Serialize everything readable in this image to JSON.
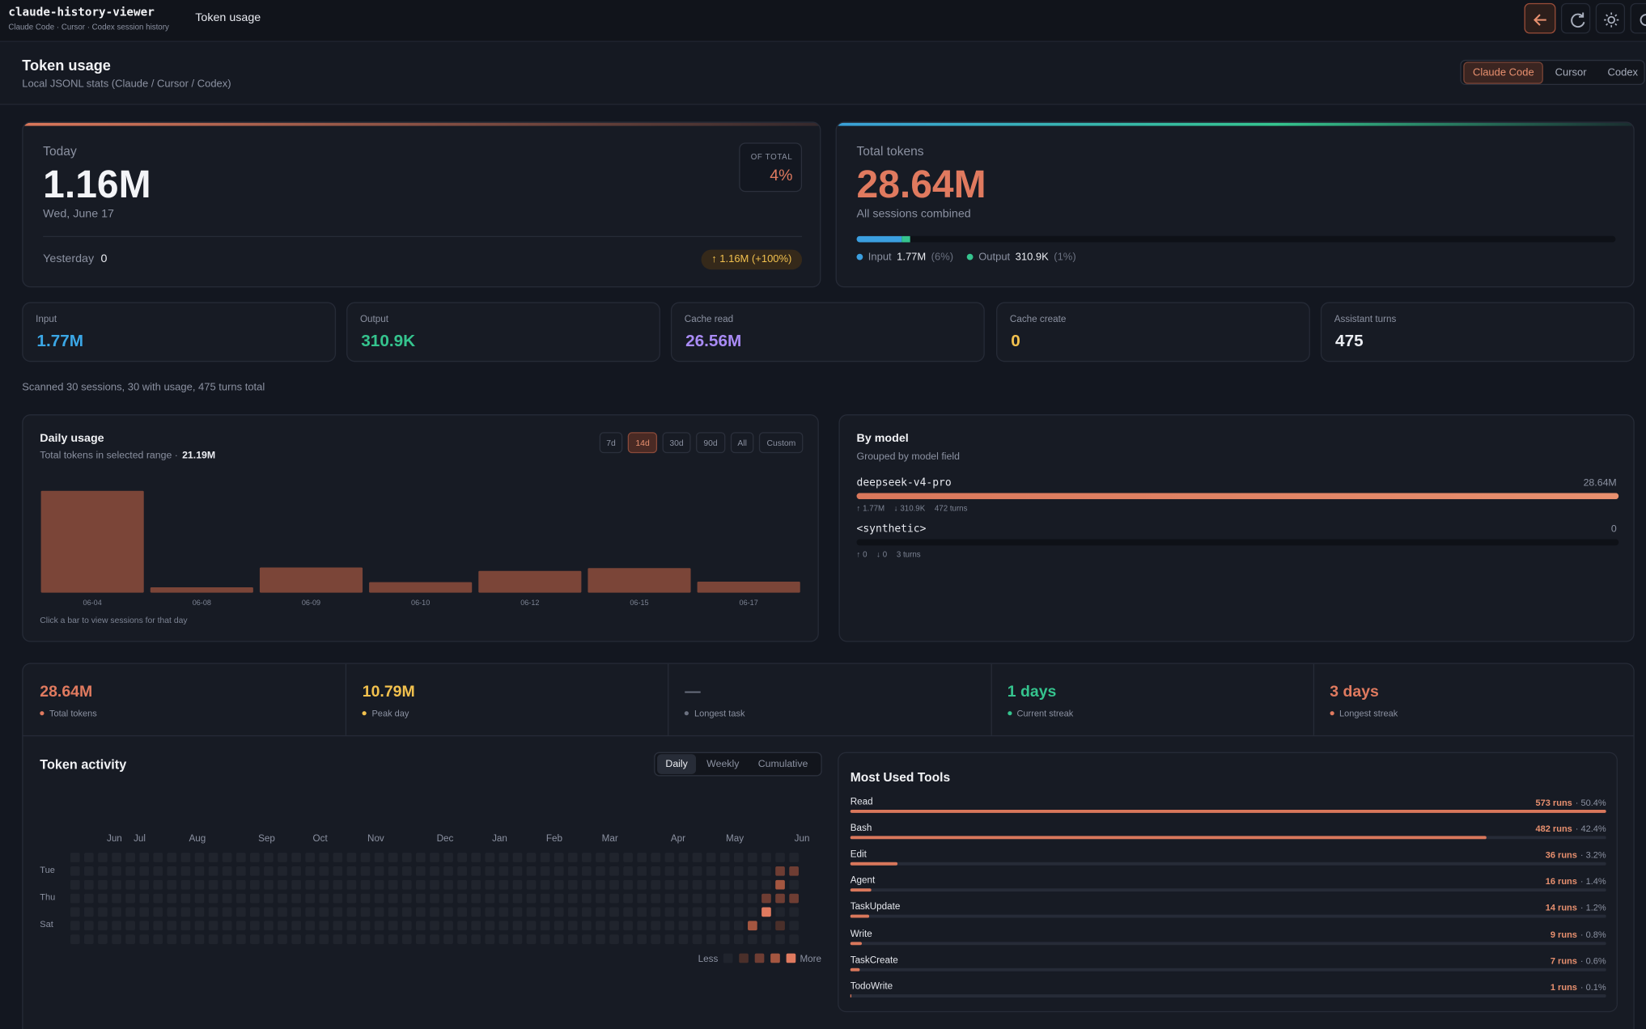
{
  "top_bar": {
    "app_name": "claude-history-viewer",
    "app_subtitle": "Claude Code · Cursor · Codex session history",
    "page_title": "Token usage"
  },
  "page_header": {
    "title": "Token usage",
    "subtitle": "Local JSONL stats (Claude / Cursor / Codex)",
    "sources": [
      "Claude Code",
      "Cursor",
      "Codex"
    ],
    "active_source": 0
  },
  "today": {
    "label": "Today",
    "value": "1.16M",
    "date": "Wed, June 17",
    "yesterday_label": "Yesterday",
    "yesterday_value": "0",
    "change": "↑ 1.16M (+100%)",
    "share_label": "OF TOTAL",
    "share": "4%"
  },
  "total": {
    "label": "Total tokens",
    "value": "28.64M",
    "caption": "All sessions combined",
    "parts": [
      {
        "name": "Input",
        "value": "1.77M",
        "share": 6,
        "share_label": "(6%)",
        "color": "#3b9fe0"
      },
      {
        "name": "Output",
        "value": "310.9K",
        "share": 1,
        "share_label": "(1%)",
        "color": "#35c48e"
      }
    ]
  },
  "stats": [
    {
      "label": "Input",
      "value": "1.77M",
      "color": "#3ba7e6"
    },
    {
      "label": "Output",
      "value": "310.9K",
      "color": "#35c48e"
    },
    {
      "label": "Cache read",
      "value": "26.56M",
      "color": "#a98bf5"
    },
    {
      "label": "Cache create",
      "value": "0",
      "color": "#f2c14e"
    },
    {
      "label": "Assistant turns",
      "value": "475",
      "color": "#eceef3"
    }
  ],
  "scan_note": "Scanned 30 sessions, 30 with usage, 475 turns total",
  "daily_usage": {
    "type": "bar",
    "title": "Daily usage",
    "subtitle": "Total tokens in selected range ·",
    "range_total": "21.19M",
    "ranges": [
      "7d",
      "14d",
      "30d",
      "90d",
      "All",
      "Custom"
    ],
    "active_range": 1,
    "categories": [
      "06-04",
      "06-08",
      "06-09",
      "06-10",
      "06-12",
      "06-15",
      "06-17"
    ],
    "values": [
      10.79,
      0.56,
      2.67,
      1.11,
      2.3,
      2.6,
      1.16
    ],
    "color": "#7b4538",
    "note": "Click a bar to view sessions for that day"
  },
  "by_model": {
    "title": "By model",
    "subtitle": "Grouped by model field",
    "models": [
      {
        "name": "deepseek-v4-pro",
        "tokens": 28.64,
        "tokens_label": "28.64M",
        "input": "↑ 1.77M",
        "output": "↓ 310.9K",
        "turns": "472 turns"
      },
      {
        "name": "<synthetic>",
        "tokens": 0,
        "tokens_label": "0",
        "input": "↑ 0",
        "output": "↓ 0",
        "turns": "3 turns"
      }
    ]
  },
  "summary": [
    {
      "value": "28.64M",
      "label": "Total tokens",
      "color": "#e07a5f"
    },
    {
      "value": "10.79M",
      "label": "Peak day",
      "color": "#f2c14e"
    },
    {
      "value": "—",
      "label": "Longest task",
      "color": "#6b7180"
    },
    {
      "value": "1 days",
      "label": "Current streak",
      "color": "#35c48e"
    },
    {
      "value": "3 days",
      "label": "Longest streak",
      "color": "#e07a5f"
    }
  ],
  "activity": {
    "title": "Token activity",
    "modes": [
      "Daily",
      "Weekly",
      "Cumulative"
    ],
    "active_mode": 0,
    "months": [
      "Jun",
      "Jul",
      "Aug",
      "Sep",
      "Oct",
      "Nov",
      "Dec",
      "Jan",
      "Feb",
      "Mar",
      "Apr",
      "May",
      "Jun"
    ],
    "day_labels": [
      "Tue",
      "Thu",
      "Sat"
    ],
    "recent_weeks": [
      [
        0,
        0,
        0,
        0,
        0,
        3,
        0
      ],
      [
        0,
        0,
        0,
        2,
        4,
        0,
        0
      ],
      [
        0,
        2,
        3,
        2,
        0,
        1,
        0
      ],
      [
        0,
        2,
        0,
        2,
        0,
        0,
        0
      ]
    ],
    "legend_less": "Less",
    "legend_more": "More",
    "colors": [
      "#20242d",
      "#4a2f2a",
      "#6e3d33",
      "#a45640",
      "#e07a5f"
    ]
  },
  "tools": {
    "title": "Most Used Tools",
    "categories": [
      "Read",
      "Bash",
      "Edit",
      "Agent",
      "TaskUpdate",
      "Write",
      "TaskCreate",
      "TodoWrite"
    ],
    "values": [
      573,
      482,
      36,
      16,
      14,
      9,
      7,
      1
    ],
    "value_labels": [
      "573 runs",
      "482 runs",
      "36 runs",
      "16 runs",
      "14 runs",
      "9 runs",
      "7 runs",
      "1 runs"
    ],
    "share_labels": [
      "· 50.4%",
      "· 42.4%",
      "· 3.2%",
      "· 1.4%",
      "· 1.2%",
      "· 0.8%",
      "· 0.6%",
      "· 0.1%"
    ],
    "color": "#d9775b"
  }
}
